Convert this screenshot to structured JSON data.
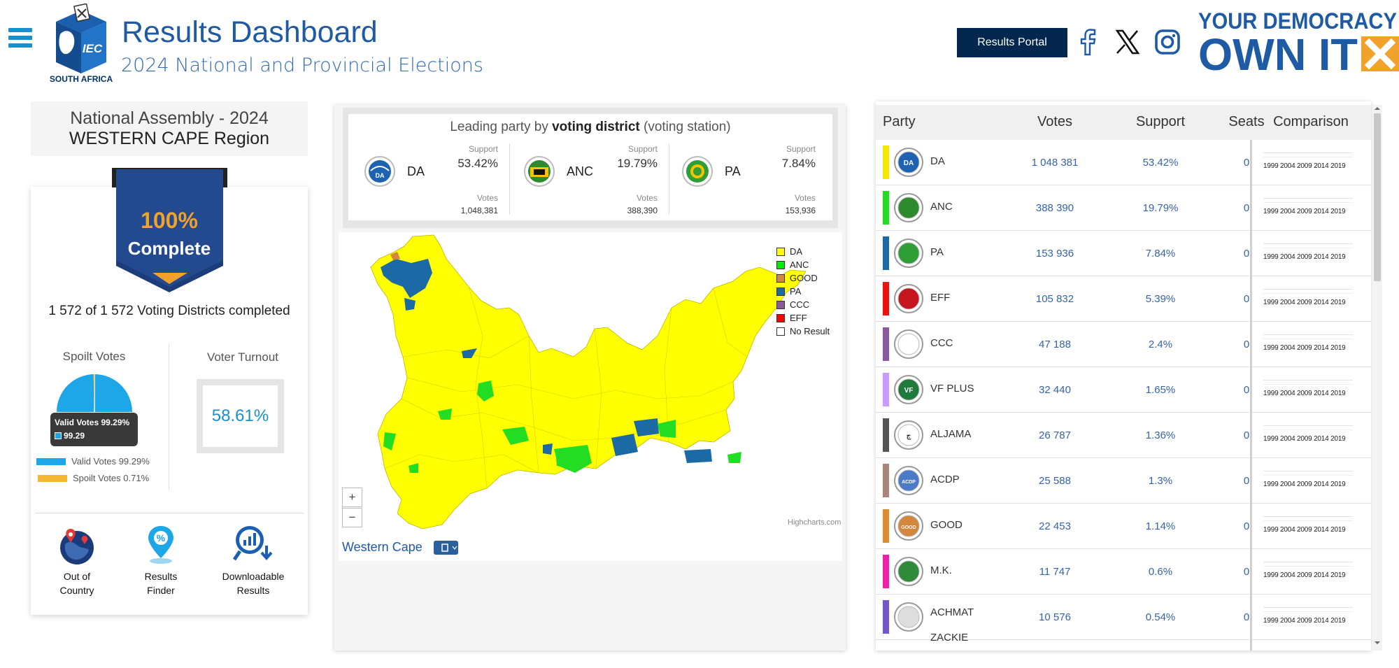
{
  "header": {
    "title": "Results Dashboard",
    "subtitle": "2024 National and Provincial Elections",
    "logo_text": "IEC",
    "logo_sub": "SOUTH AFRICA",
    "portal_button": "Results Portal",
    "brand_line1": "YOUR DEMOCRACY",
    "brand_line2": "OWN IT"
  },
  "left": {
    "title_line1": "National Assembly - 2024",
    "title_line2": "WESTERN CAPE Region",
    "complete_pct": "100%",
    "complete_label": "Complete",
    "progress_fraction": 1.0,
    "districts_text": "1 572 of 1 572 Voting Districts completed",
    "spoilt_title": "Spoilt Votes",
    "turnout_title": "Voter Turnout",
    "turnout_value": "58.61%",
    "tooltip_title": "Valid Votes 99.29%",
    "tooltip_value": "99.29",
    "legend_valid": "Valid Votes 99.29%",
    "legend_spoilt": "Spoilt Votes 0.71%",
    "pie": {
      "valid": 99.29,
      "spoilt": 0.71
    },
    "tools": [
      {
        "label_line1": "Out of",
        "label_line2": "Country"
      },
      {
        "label_line1": "Results",
        "label_line2": "Finder"
      },
      {
        "label_line1": "Downloadable",
        "label_line2": "Results"
      }
    ]
  },
  "leading": {
    "title_pre": "Leading party by ",
    "title_bold": "voting district",
    "title_post": " (voting station)",
    "support_label": "Support",
    "votes_label": "Votes",
    "parties": [
      {
        "name": "DA",
        "support": "53.42%",
        "votes": "1,048,381"
      },
      {
        "name": "ANC",
        "support": "19.79%",
        "votes": "388,390"
      },
      {
        "name": "PA",
        "support": "7.84%",
        "votes": "153,936"
      }
    ]
  },
  "map": {
    "legend": [
      {
        "name": "DA",
        "color": "#ffff00"
      },
      {
        "name": "ANC",
        "color": "#00ee00"
      },
      {
        "name": "GOOD",
        "color": "#d2873c"
      },
      {
        "name": "PA",
        "color": "#1c6aa5"
      },
      {
        "name": "CCC",
        "color": "#8b5a9e"
      },
      {
        "name": "EFF",
        "color": "#ff0000"
      },
      {
        "name": "No Result",
        "color": "#ffffff"
      }
    ],
    "zoom_in": "+",
    "zoom_out": "−",
    "credit": "Highcharts.com",
    "region_label": "Western Cape"
  },
  "table": {
    "headers": [
      "Party",
      "Votes",
      "Support",
      "Seats",
      "Comparison"
    ],
    "years": "1999 2004 2009 2014 2019",
    "rows": [
      {
        "party": "DA",
        "votes": "1 048 381",
        "support": "53.42%",
        "seats": "0",
        "color": "#f5e800"
      },
      {
        "party": "ANC",
        "votes": "388 390",
        "support": "19.79%",
        "seats": "0",
        "color": "#22dd22"
      },
      {
        "party": "PA",
        "votes": "153 936",
        "support": "7.84%",
        "seats": "0",
        "color": "#1c6aa5"
      },
      {
        "party": "EFF",
        "votes": "105 832",
        "support": "5.39%",
        "seats": "0",
        "color": "#ee1111"
      },
      {
        "party": "CCC",
        "votes": "47 188",
        "support": "2.4%",
        "seats": "0",
        "color": "#8b5a9e"
      },
      {
        "party": "VF PLUS",
        "votes": "32 440",
        "support": "1.65%",
        "seats": "0",
        "color": "#c99aff"
      },
      {
        "party": "ALJAMA",
        "votes": "26 787",
        "support": "1.36%",
        "seats": "0",
        "color": "#555555"
      },
      {
        "party": "ACDP",
        "votes": "25 588",
        "support": "1.3%",
        "seats": "0",
        "color": "#a9857a"
      },
      {
        "party": "GOOD",
        "votes": "22 453",
        "support": "1.14%",
        "seats": "0",
        "color": "#e08a33"
      },
      {
        "party": "M.K.",
        "votes": "11 747",
        "support": "0.6%",
        "seats": "0",
        "color": "#ee22aa"
      },
      {
        "party": "ACHMAT ZACKIE",
        "votes": "10 576",
        "support": "0.54%",
        "seats": "0",
        "color": "#7755cc"
      }
    ]
  }
}
